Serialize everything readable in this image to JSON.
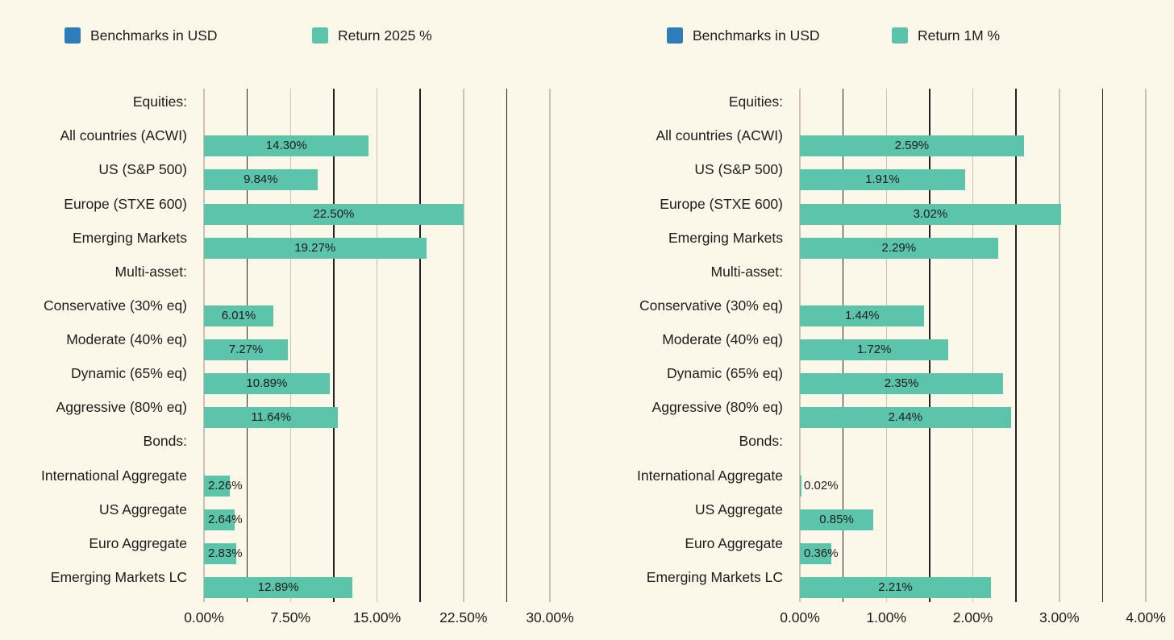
{
  "background": "#FCF8E9",
  "text_color": "#1C1C1C",
  "grid_major_color": "#C8C3B5",
  "grid_minor_color": "#222222",
  "chart_data": [
    {
      "type": "bar",
      "orientation": "horizontal",
      "bar_color": "#5BC4AB",
      "grid": "on",
      "legend_position": "top",
      "legend": [
        {
          "label": "Benchmarks in USD",
          "color": "#2E7DB9"
        },
        {
          "label": "Return 2025 %",
          "color": "#5BC4AB"
        }
      ],
      "x_ticks": [
        "0.00%",
        "7.50%",
        "15.00%",
        "22.50%",
        "30.00%"
      ],
      "x_range": [
        0,
        30
      ],
      "x_tick_step": 7.5,
      "x_grid_step": 3.75,
      "rows": [
        {
          "label": "Equities:",
          "header": true
        },
        {
          "label": "All countries (ACWI)",
          "value": 14.3,
          "value_label": "14.30%"
        },
        {
          "label": "US (S&P 500)",
          "value": 9.84,
          "value_label": "9.84%"
        },
        {
          "label": "Europe (STXE 600)",
          "value": 22.5,
          "value_label": "22.50%"
        },
        {
          "label": "Emerging Markets",
          "value": 19.27,
          "value_label": "19.27%"
        },
        {
          "label": "Multi-asset:",
          "header": true
        },
        {
          "label": "Conservative (30% eq)",
          "value": 6.01,
          "value_label": "6.01%"
        },
        {
          "label": "Moderate (40% eq)",
          "value": 7.27,
          "value_label": "7.27%"
        },
        {
          "label": "Dynamic (65% eq)",
          "value": 10.89,
          "value_label": "10.89%"
        },
        {
          "label": "Aggressive (80% eq)",
          "value": 11.64,
          "value_label": "11.64%"
        },
        {
          "label": "Bonds:",
          "header": true
        },
        {
          "label": "International Aggregate",
          "value": 2.26,
          "value_label": "2.26%"
        },
        {
          "label": "US Aggregate",
          "value": 2.64,
          "value_label": "2.64%"
        },
        {
          "label": "Euro Aggregate",
          "value": 2.83,
          "value_label": "2.83%"
        },
        {
          "label": "Emerging Markets LC",
          "value": 12.89,
          "value_label": "12.89%"
        }
      ]
    },
    {
      "type": "bar",
      "orientation": "horizontal",
      "bar_color": "#5BC4AB",
      "grid": "on",
      "legend_position": "top",
      "legend": [
        {
          "label": "Benchmarks in USD",
          "color": "#2E7DB9"
        },
        {
          "label": "Return 1M %",
          "color": "#5BC4AB"
        }
      ],
      "x_ticks": [
        "0.00%",
        "1.00%",
        "2.00%",
        "3.00%",
        "4.00%"
      ],
      "x_range": [
        0,
        4
      ],
      "x_tick_step": 1.0,
      "x_grid_step": 0.5,
      "rows": [
        {
          "label": "Equities:",
          "header": true
        },
        {
          "label": "All countries (ACWI)",
          "value": 2.59,
          "value_label": "2.59%"
        },
        {
          "label": "US (S&P 500)",
          "value": 1.91,
          "value_label": "1.91%"
        },
        {
          "label": "Europe (STXE 600)",
          "value": 3.02,
          "value_label": "3.02%"
        },
        {
          "label": "Emerging Markets",
          "value": 2.29,
          "value_label": "2.29%"
        },
        {
          "label": "Multi-asset:",
          "header": true
        },
        {
          "label": "Conservative (30% eq)",
          "value": 1.44,
          "value_label": "1.44%"
        },
        {
          "label": "Moderate (40% eq)",
          "value": 1.72,
          "value_label": "1.72%"
        },
        {
          "label": "Dynamic (65% eq)",
          "value": 2.35,
          "value_label": "2.35%"
        },
        {
          "label": "Aggressive (80% eq)",
          "value": 2.44,
          "value_label": "2.44%"
        },
        {
          "label": "Bonds:",
          "header": true
        },
        {
          "label": "International Aggregate",
          "value": 0.02,
          "value_label": "0.02%"
        },
        {
          "label": "US Aggregate",
          "value": 0.85,
          "value_label": "0.85%"
        },
        {
          "label": "Euro Aggregate",
          "value": 0.36,
          "value_label": "0.36%"
        },
        {
          "label": "Emerging Markets LC",
          "value": 2.21,
          "value_label": "2.21%"
        }
      ]
    }
  ]
}
